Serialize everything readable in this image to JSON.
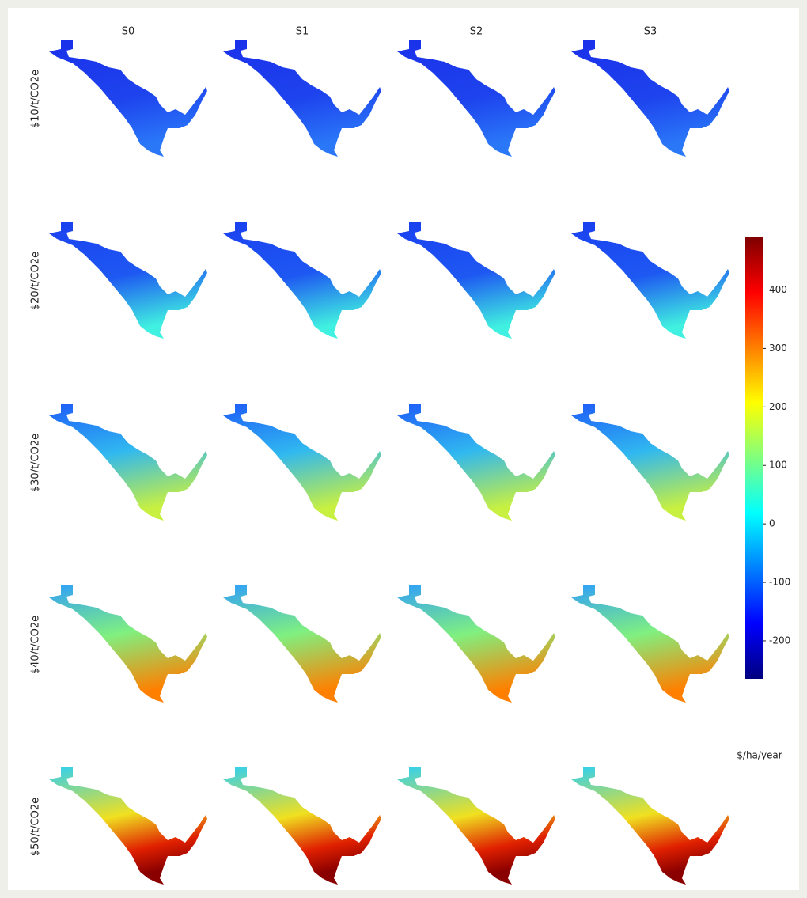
{
  "columns": [
    "S0",
    "S1",
    "S2",
    "S3"
  ],
  "rows": [
    "$10/t/CO2e",
    "$20/t/CO2e",
    "$30/t/CO2e",
    "$40/t/CO2e",
    "$50/t/CO2e"
  ],
  "colorbar": {
    "label": "$/ha/year",
    "lim": [
      -265,
      490
    ],
    "ticks": [
      -200,
      -100,
      0,
      100,
      200,
      300,
      400
    ]
  }
}
